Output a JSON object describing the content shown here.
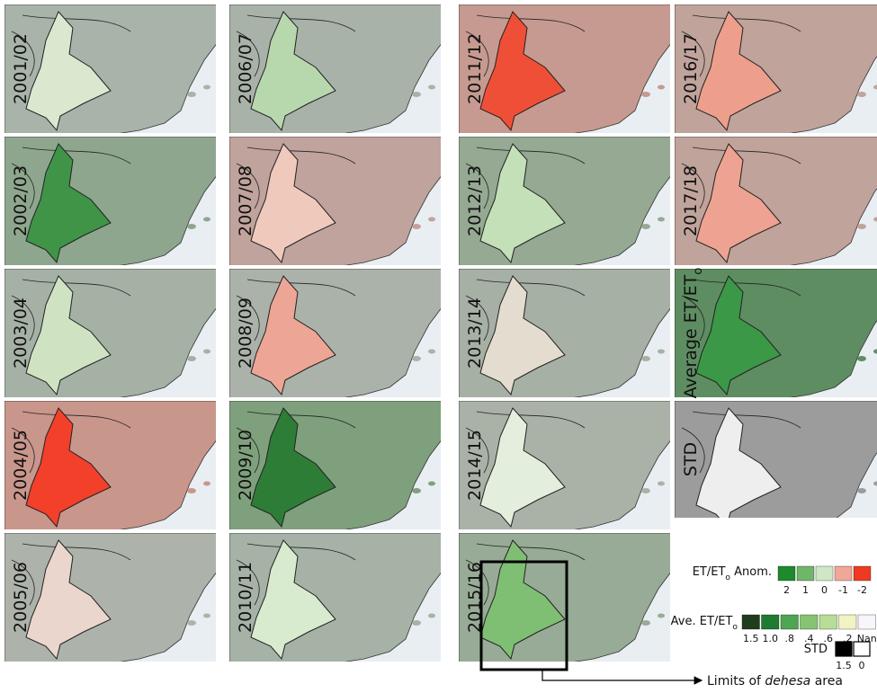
{
  "panels": [
    {
      "label": [
        "2001/02"
      ],
      "col": 0,
      "row": 0,
      "land": "#a8b3aa",
      "dehesa": "#d9e8cf"
    },
    {
      "label": [
        "2002/03"
      ],
      "col": 0,
      "row": 1,
      "land": "#8fa68e",
      "dehesa": "#3f9447"
    },
    {
      "label": [
        "2003/04"
      ],
      "col": 0,
      "row": 2,
      "land": "#a6b1a6",
      "dehesa": "#cfe3c3"
    },
    {
      "label": [
        "2004/05"
      ],
      "col": 0,
      "row": 3,
      "land": "#c9968c",
      "dehesa": "#f2402a"
    },
    {
      "label": [
        "2005/06"
      ],
      "col": 0,
      "row": 4,
      "land": "#adb3aa",
      "dehesa": "#ead6cc"
    },
    {
      "label": [
        "2006/07"
      ],
      "col": 1,
      "row": 0,
      "land": "#a9b2a9",
      "dehesa": "#b7d8ad"
    },
    {
      "label": [
        "2007/08"
      ],
      "col": 1,
      "row": 1,
      "land": "#c0a39c",
      "dehesa": "#efc9bc"
    },
    {
      "label": [
        "2008/09"
      ],
      "col": 1,
      "row": 2,
      "land": "#abb2a9",
      "dehesa": "#eda596"
    },
    {
      "label": [
        "2009/10"
      ],
      "col": 1,
      "row": 3,
      "land": "#7fa07c",
      "dehesa": "#2e7d36"
    },
    {
      "label": [
        "2010/11"
      ],
      "col": 1,
      "row": 4,
      "land": "#a5b2a5",
      "dehesa": "#d8ebce"
    },
    {
      "label": [
        "2011/12"
      ],
      "col": 2,
      "row": 0,
      "land": "#c69a90",
      "dehesa": "#f04f37"
    },
    {
      "label": [
        "2012/13"
      ],
      "col": 2,
      "row": 1,
      "land": "#95a993",
      "dehesa": "#c3e0b8"
    },
    {
      "label": [
        "2013/14"
      ],
      "col": 2,
      "row": 2,
      "land": "#a6b0a5",
      "dehesa": "#e3dccf"
    },
    {
      "label": [
        "2014/15"
      ],
      "col": 2,
      "row": 3,
      "land": "#aab2a8",
      "dehesa": "#e3eedd"
    },
    {
      "label": [
        "2015/16"
      ],
      "col": 2,
      "row": 4,
      "land": "#98ab96",
      "dehesa": "#7fbf74"
    },
    {
      "label": [
        "2016/17"
      ],
      "col": 3,
      "row": 0,
      "land": "#c0a39b",
      "dehesa": "#ee9f8c"
    },
    {
      "label": [
        "2017/18"
      ],
      "col": 3,
      "row": 1,
      "land": "#c0a39b",
      "dehesa": "#eea292"
    },
    {
      "label": [
        "Average ET/ET",
        "o"
      ],
      "col": 3,
      "row": 2,
      "land": "#5e8d62",
      "dehesa": "#3b9847"
    },
    {
      "label": [
        "STD"
      ],
      "col": 3,
      "row": 3,
      "land": "#9c9c9c",
      "dehesa": "#eeeeee"
    }
  ],
  "legends": {
    "anomaly": {
      "title": [
        "ET/ET",
        "o",
        " Anom."
      ],
      "colors": [
        "#1d8a2c",
        "#6fb56a",
        "#cfe6c7",
        "#f0a796",
        "#ee3a22"
      ],
      "ticks": [
        "2",
        "1",
        "0",
        "-1",
        "-2"
      ]
    },
    "average": {
      "title": [
        "Ave. ET/ET",
        "o"
      ],
      "colors": [
        "#1f3d1c",
        "#1f7a32",
        "#4ea552",
        "#85c471",
        "#b9dd94",
        "#f1f3c4",
        "#f8f6fb"
      ],
      "ticks": [
        "1.5",
        "1.0",
        ".8",
        ".4",
        ".6",
        ".2",
        "Nan"
      ]
    },
    "std": {
      "title": [
        "STD"
      ],
      "colors": [
        "#000000",
        "#ffffff"
      ],
      "ticks": [
        "1.5",
        "0"
      ]
    }
  },
  "annotation": [
    "Limits of ",
    "dehesa",
    " area"
  ]
}
